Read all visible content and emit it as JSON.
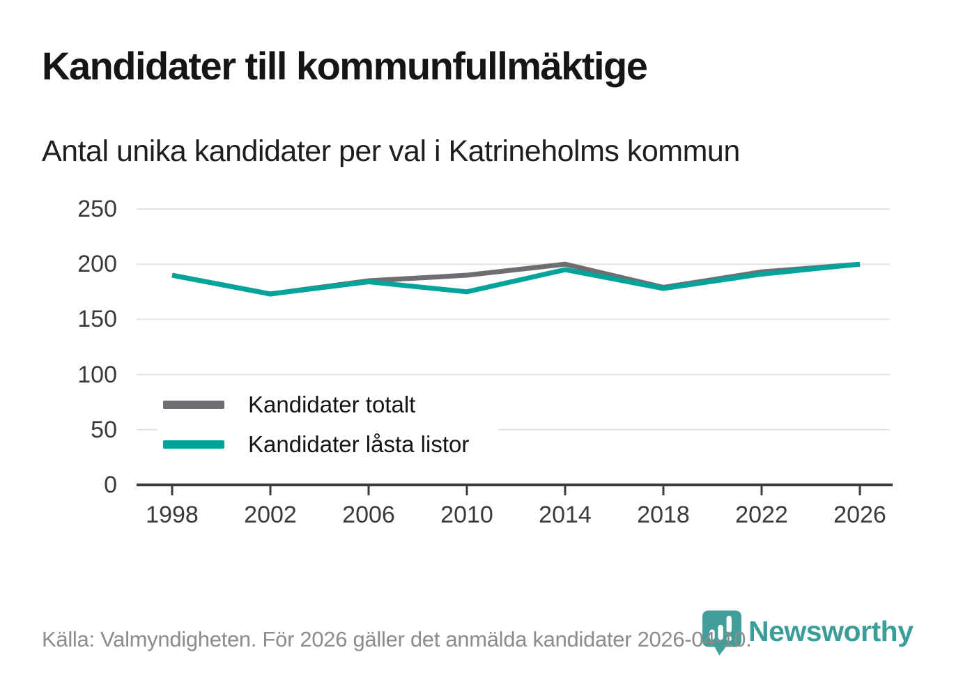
{
  "header": {
    "title": "Kandidater till kommunfullmäktige",
    "subtitle": "Antal unika kandidater per val i Katrineholms kommun"
  },
  "chart_data": {
    "type": "line",
    "title": "Kandidater till kommunfullmäktige",
    "subtitle": "Antal unika kandidater per val i Katrineholms kommun",
    "categories": [
      "1998",
      "2002",
      "2006",
      "2010",
      "2014",
      "2018",
      "2022",
      "2026"
    ],
    "series": [
      {
        "name": "Kandidater totalt",
        "color": "#6d6e71",
        "values": [
          190,
          173,
          185,
          190,
          200,
          179,
          193,
          200
        ]
      },
      {
        "name": "Kandidater låsta listor",
        "color": "#00a49b",
        "values": [
          190,
          173,
          184,
          175,
          195,
          178,
          191,
          200
        ]
      }
    ],
    "xlabel": "",
    "ylabel": "",
    "ylim": [
      0,
      250
    ],
    "yticks": [
      0,
      50,
      100,
      150,
      200,
      250
    ],
    "grid": "horizontal",
    "legend_position": "inside-bottom-left"
  },
  "footer": {
    "source": "Källa: Valmyndigheten. För 2026 gäller det anmälda kandidater 2026-04-10.",
    "brand": {
      "name": "Newsworthy",
      "icon": "bar-chart-pin-icon",
      "color": "#3b9d98"
    }
  },
  "colors": {
    "background": "#ffffff",
    "gridline": "#e4e4e4",
    "axis": "#3b3b3b",
    "tick_text": "#3a3a3a",
    "source_text": "#8c8c8c"
  }
}
